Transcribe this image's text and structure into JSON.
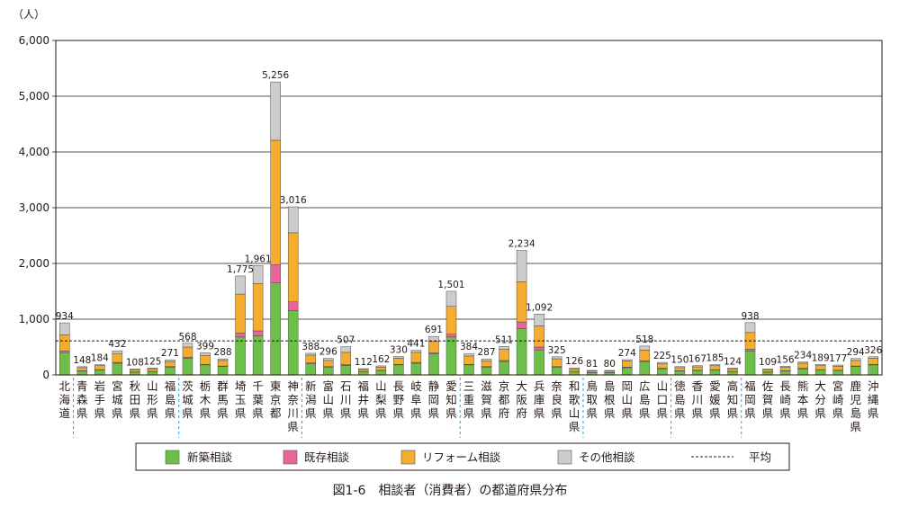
{
  "chart_data": {
    "type": "bar",
    "stacked": true,
    "unit_label": "（人）",
    "caption": "図1-6　相談者（消費者）の都道府県分布",
    "ylim": [
      0,
      6000
    ],
    "y_ticks": [
      0,
      1000,
      2000,
      3000,
      4000,
      5000,
      6000
    ],
    "y_tick_labels": [
      "0",
      "1,000",
      "2,000",
      "3,000",
      "4,000",
      "5,000",
      "6,000"
    ],
    "grid": true,
    "legend_position": "bottom",
    "average_value": 610,
    "region_dividers_after": [
      0,
      6,
      13,
      22,
      29,
      34,
      38
    ],
    "categories": [
      "北海道",
      "青森県",
      "岩手県",
      "宮城県",
      "秋田県",
      "山形県",
      "福島県",
      "茨城県",
      "栃木県",
      "群馬県",
      "埼玉県",
      "千葉県",
      "東京都",
      "神奈川県",
      "新潟県",
      "富山県",
      "石川県",
      "福井県",
      "山梨県",
      "長野県",
      "岐阜県",
      "静岡県",
      "愛知県",
      "三重県",
      "滋賀県",
      "京都府",
      "大阪府",
      "兵庫県",
      "奈良県",
      "和歌山県",
      "鳥取県",
      "島根県",
      "岡山県",
      "広島県",
      "山口県",
      "徳島県",
      "香川県",
      "愛媛県",
      "高知県",
      "福岡県",
      "佐賀県",
      "長崎県",
      "熊本県",
      "大分県",
      "宮崎県",
      "鹿児島県",
      "沖縄県"
    ],
    "totals": [
      934,
      148,
      184,
      432,
      108,
      125,
      271,
      568,
      399,
      288,
      1775,
      1961,
      5256,
      3016,
      388,
      296,
      507,
      112,
      162,
      330,
      441,
      691,
      1501,
      384,
      287,
      511,
      2234,
      1092,
      325,
      126,
      81,
      80,
      274,
      518,
      225,
      150,
      167,
      185,
      124,
      938,
      109,
      156,
      234,
      189,
      177,
      294,
      326
    ],
    "total_labels": [
      "934",
      "148",
      "184",
      "432",
      "108",
      "125",
      "271",
      "568",
      "399",
      "288",
      "1,775",
      "1,961",
      "5,256",
      "3,016",
      "388",
      "296",
      "507",
      "112",
      "162",
      "330",
      "441",
      "691",
      "1,501",
      "384",
      "287",
      "511",
      "2,234",
      "1,092",
      "325",
      "126",
      "81",
      "80",
      "274",
      "518",
      "225",
      "150",
      "167",
      "185",
      "124",
      "938",
      "109",
      "156",
      "234",
      "189",
      "177",
      "294",
      "326"
    ],
    "series": [
      {
        "name": "新築相談",
        "color": "#6cc04a",
        "values": [
          400,
          70,
          90,
          210,
          50,
          60,
          140,
          300,
          180,
          150,
          680,
          700,
          1650,
          1150,
          200,
          140,
          170,
          60,
          80,
          180,
          210,
          380,
          680,
          180,
          140,
          240,
          830,
          450,
          140,
          60,
          40,
          40,
          130,
          240,
          110,
          70,
          80,
          90,
          60,
          430,
          50,
          70,
          110,
          90,
          80,
          150,
          180
        ]
      },
      {
        "name": "既存相談",
        "color": "#e9659a",
        "values": [
          30,
          5,
          5,
          15,
          5,
          5,
          10,
          20,
          10,
          10,
          70,
          90,
          330,
          160,
          15,
          10,
          15,
          5,
          5,
          10,
          15,
          20,
          50,
          10,
          10,
          20,
          120,
          50,
          10,
          5,
          3,
          3,
          10,
          15,
          10,
          5,
          5,
          5,
          5,
          30,
          5,
          5,
          10,
          5,
          5,
          10,
          10
        ]
      },
      {
        "name": "リフォーム相談",
        "color": "#f4ad2f",
        "values": [
          290,
          55,
          70,
          160,
          40,
          45,
          90,
          180,
          160,
          100,
          700,
          850,
          2230,
          1240,
          140,
          110,
          220,
          35,
          55,
          110,
          180,
          200,
          500,
          150,
          100,
          200,
          720,
          380,
          140,
          45,
          28,
          27,
          110,
          190,
          80,
          55,
          60,
          70,
          45,
          300,
          40,
          60,
          90,
          70,
          70,
          100,
          110
        ]
      },
      {
        "name": "その他相談",
        "color": "#cccccc",
        "values": [
          214,
          18,
          19,
          47,
          13,
          15,
          31,
          68,
          49,
          28,
          325,
          321,
          1046,
          466,
          33,
          36,
          102,
          12,
          22,
          30,
          36,
          91,
          271,
          44,
          37,
          51,
          564,
          212,
          35,
          16,
          10,
          10,
          24,
          73,
          25,
          20,
          22,
          20,
          14,
          178,
          14,
          21,
          24,
          24,
          22,
          34,
          26
        ]
      }
    ],
    "legend": [
      {
        "label": "新築相談",
        "color": "#6cc04a",
        "kind": "box"
      },
      {
        "label": "既存相談",
        "color": "#e9659a",
        "kind": "box"
      },
      {
        "label": "リフォーム相談",
        "color": "#f4ad2f",
        "kind": "box"
      },
      {
        "label": "その他相談",
        "color": "#cccccc",
        "kind": "box"
      },
      {
        "label": "平均",
        "color": "#231815",
        "kind": "dashed-line"
      }
    ]
  }
}
